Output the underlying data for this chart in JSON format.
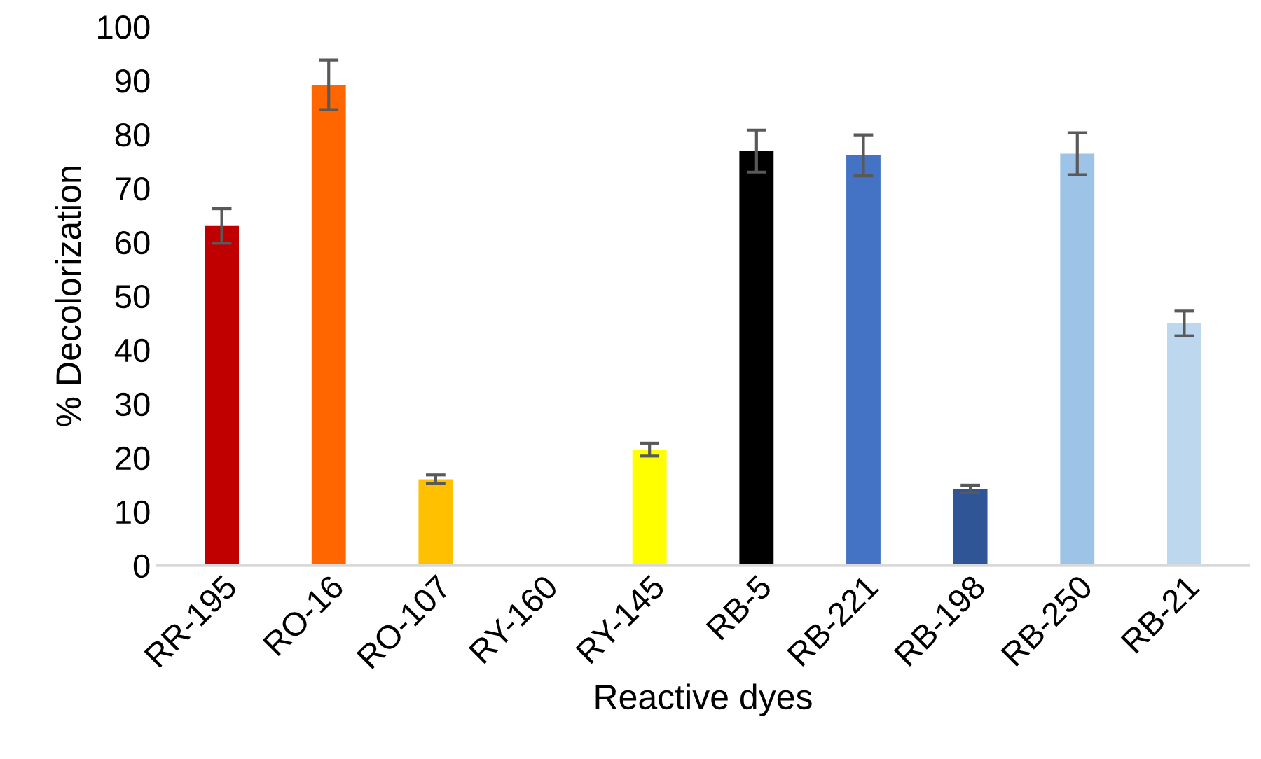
{
  "chart_data": {
    "type": "bar",
    "xlabel": "Reactive dyes",
    "ylabel": "% Decolorization",
    "categories": [
      "RR-195",
      "RO-16",
      "RO-107",
      "RY-160",
      "RY-145",
      "RB-5",
      "RB-221",
      "RB-198",
      "RB-250",
      "RB-21"
    ],
    "values": [
      63.0,
      89.2,
      16.0,
      0,
      21.5,
      76.9,
      76.1,
      14.2,
      76.4,
      44.9
    ],
    "errors": [
      3.2,
      4.6,
      0.8,
      null,
      1.2,
      3.9,
      3.8,
      0.7,
      3.9,
      2.3
    ],
    "colors": [
      "#c00000",
      "#ff6600",
      "#ffc000",
      "#ffd966",
      "#ffff00",
      "#000000",
      "#4472c4",
      "#2f5597",
      "#9dc3e6",
      "#bdd7ee"
    ],
    "ylim": [
      0,
      100
    ],
    "yticks": [
      0,
      10,
      20,
      30,
      40,
      50,
      60,
      70,
      80,
      90,
      100
    ],
    "grid": false
  }
}
